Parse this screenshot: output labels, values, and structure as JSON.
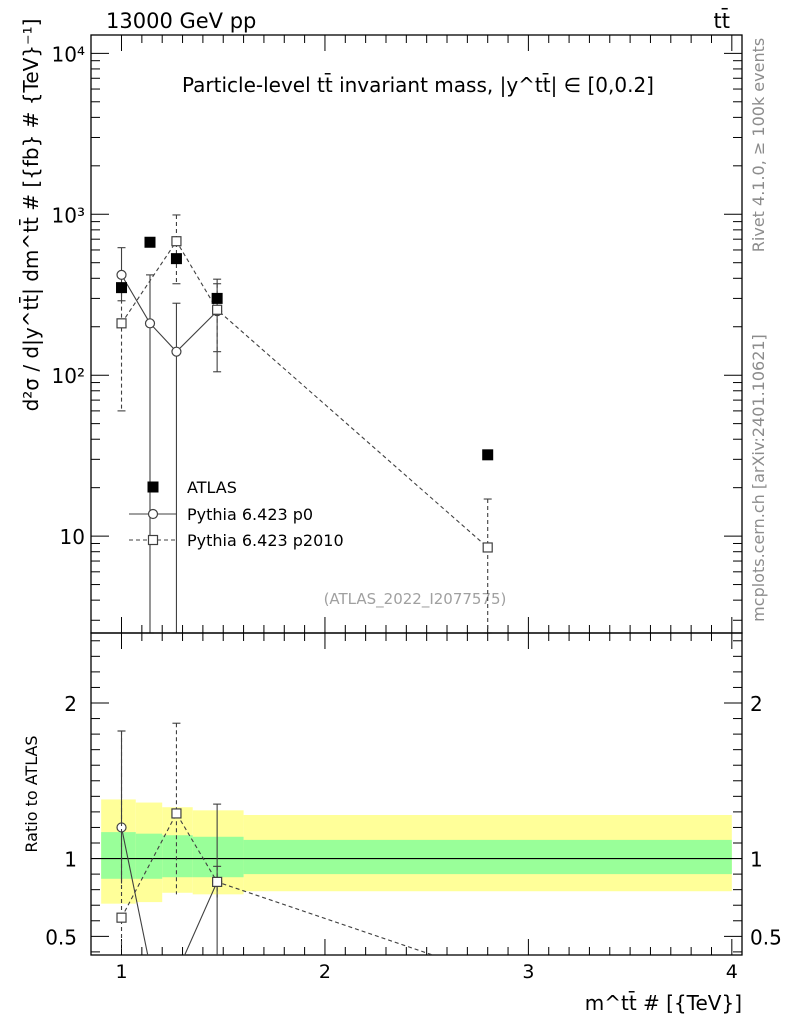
{
  "header": {
    "left_label": "13000 GeV pp",
    "right_label": "tt̄"
  },
  "side_labels": {
    "rivet": "Rivet 4.1.0, ≥ 100k events",
    "mcplots": "mcplots.cern.ch [arXiv:2401.10621]"
  },
  "chart_data": {
    "type": "scatter",
    "title": "Particle-level tt̄ invariant mass, |y^tt̄| ∈ [0,0.2]",
    "watermark": "(ATLAS_2022_I2077575)",
    "xlabel": "m^tt̄ # [{TeV}]",
    "xlim": [
      0.85,
      4.05
    ],
    "x_ticks": [
      1,
      2,
      3,
      4
    ],
    "x_tick_labels": [
      "1",
      "2",
      "3",
      "4"
    ],
    "main_panel": {
      "ylabel": "d²σ / d|y^tt̄| dm^tt̄ # [{fb} # {TeV}⁻¹]",
      "yscale": "log",
      "ylim": [
        2.5,
        13000
      ],
      "y_ticks": [
        10,
        100,
        1000,
        10000
      ],
      "y_tick_labels": [
        "10",
        "10²",
        "10³",
        "10⁴"
      ]
    },
    "ratio_panel": {
      "ylabel": "Ratio to ATLAS",
      "ylim": [
        0.38,
        2.45
      ],
      "y_ticks": [
        0.5,
        1,
        2
      ],
      "y_tick_labels": [
        "0.5",
        "1",
        "2"
      ],
      "bands": [
        {
          "x0": 0.9,
          "x1": 1.07,
          "inner": [
            0.87,
            1.17
          ],
          "outer": [
            0.71,
            1.38
          ]
        },
        {
          "x0": 1.07,
          "x1": 1.2,
          "inner": [
            0.87,
            1.16
          ],
          "outer": [
            0.72,
            1.36
          ]
        },
        {
          "x0": 1.2,
          "x1": 1.35,
          "inner": [
            0.88,
            1.15
          ],
          "outer": [
            0.78,
            1.33
          ]
        },
        {
          "x0": 1.35,
          "x1": 1.6,
          "inner": [
            0.88,
            1.14
          ],
          "outer": [
            0.77,
            1.31
          ]
        },
        {
          "x0": 1.6,
          "x1": 4.0,
          "inner": [
            0.9,
            1.12
          ],
          "outer": [
            0.79,
            1.28
          ]
        }
      ]
    },
    "series": [
      {
        "name": "ATLAS",
        "marker": "filled-square",
        "color": "#000000",
        "points": [
          {
            "x": 1.0,
            "y": 350
          },
          {
            "x": 1.14,
            "y": 670
          },
          {
            "x": 1.27,
            "y": 530
          },
          {
            "x": 1.47,
            "y": 300
          },
          {
            "x": 2.8,
            "y": 32
          }
        ]
      },
      {
        "name": "Pythia 6.423 p0",
        "marker": "open-circle",
        "line": "solid",
        "color": "#404040",
        "points": [
          {
            "x": 1.0,
            "y": 420,
            "lo": 290,
            "hi": 620
          },
          {
            "x": 1.14,
            "y": 210,
            "lo": 0.5,
            "hi": 420
          },
          {
            "x": 1.27,
            "y": 140,
            "lo": 0.5,
            "hi": 280
          },
          {
            "x": 1.47,
            "y": 250,
            "lo": 105,
            "hi": 395
          }
        ],
        "ratio_points": [
          {
            "x": 1.0,
            "r": 1.2,
            "lo": 0.84,
            "hi": 1.82
          },
          {
            "x": 1.14,
            "r": 0.31
          },
          {
            "x": 1.27,
            "r": 0.26
          },
          {
            "x": 1.47,
            "r": 0.85,
            "lo": 0.35,
            "hi": 1.35
          }
        ]
      },
      {
        "name": "Pythia 6.423 p2010",
        "marker": "open-square",
        "line": "dashed",
        "color": "#404040",
        "points": [
          {
            "x": 1.0,
            "y": 210,
            "lo": 60,
            "hi": 360
          },
          {
            "x": 1.27,
            "y": 680,
            "lo": 370,
            "hi": 990
          },
          {
            "x": 1.47,
            "y": 255,
            "lo": 140,
            "hi": 370
          },
          {
            "x": 2.8,
            "y": 8.5,
            "lo": 0.5,
            "hi": 17
          }
        ],
        "ratio_points": [
          {
            "x": 1.0,
            "r": 0.62,
            "lo": 0.42,
            "hi": 1.82
          },
          {
            "x": 1.27,
            "r": 1.29,
            "lo": 0.77,
            "hi": 1.87
          },
          {
            "x": 1.47,
            "r": 0.85,
            "lo": 0.75,
            "hi": 0.95
          },
          {
            "x": 2.8,
            "r": 0.26
          }
        ]
      }
    ],
    "legend": {
      "position": "center-left",
      "entries": [
        "ATLAS",
        "Pythia 6.423 p0",
        "Pythia 6.423 p2010"
      ]
    },
    "colors": {
      "band_inner": "#99ff99",
      "band_outer": "#ffff99",
      "axis": "#000000"
    }
  }
}
